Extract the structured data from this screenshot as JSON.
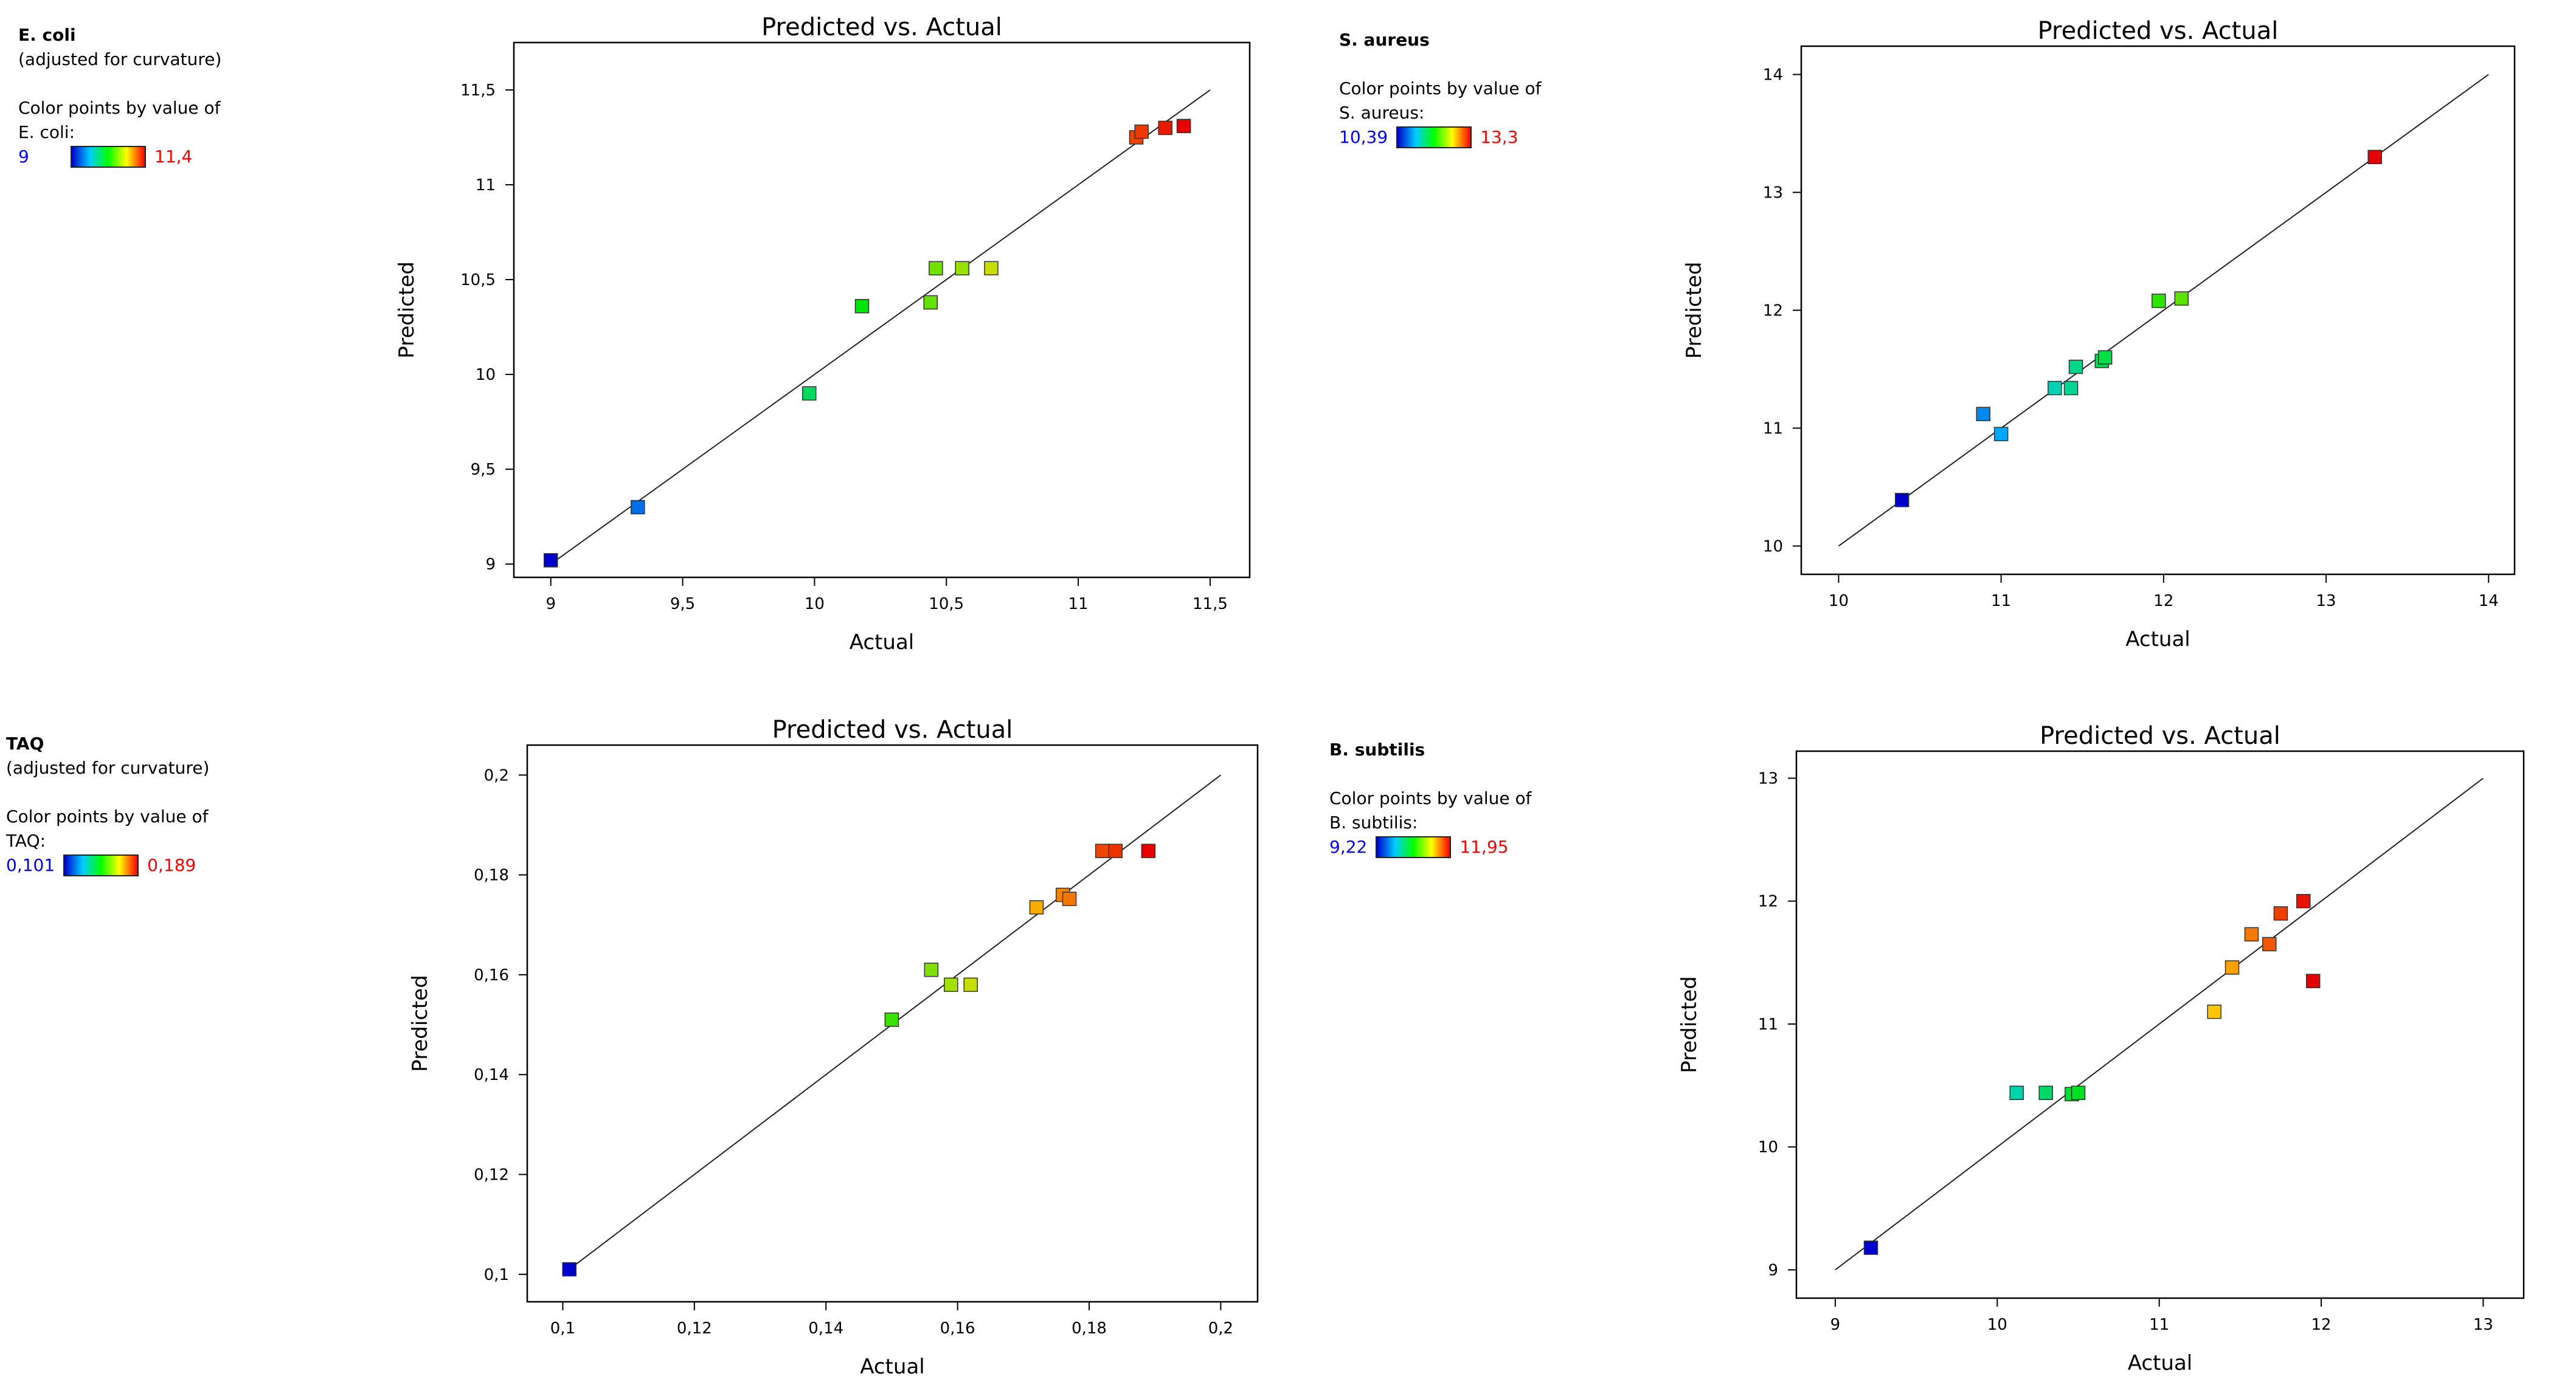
{
  "charts": [
    {
      "id": "ecoli",
      "legend": {
        "name": "E. coli",
        "note": "(adjusted for curvature)",
        "color_by": "Color points by value of",
        "color_by_var": "E. coli:",
        "min_label": "9",
        "max_label": "11,4"
      },
      "color_range": [
        9,
        11.4
      ],
      "chart_data": {
        "type": "scatter",
        "title": "Predicted vs. Actual",
        "xlabel": "Actual",
        "ylabel": "Predicted",
        "xlim": [
          8.86,
          11.65
        ],
        "ylim": [
          8.93,
          11.75
        ],
        "x_ticks": [
          9,
          9.5,
          10,
          10.5,
          11,
          11.5
        ],
        "x_tick_labels": [
          "9",
          "9,5",
          "10",
          "10,5",
          "11",
          "11,5"
        ],
        "y_ticks": [
          9,
          9.5,
          10,
          10.5,
          11,
          11.5
        ],
        "y_tick_labels": [
          "9",
          "9,5",
          "10",
          "10,5",
          "11",
          "11,5"
        ],
        "diagonal": [
          9,
          11.5
        ],
        "points": [
          {
            "x": 9.0,
            "y": 9.02
          },
          {
            "x": 9.33,
            "y": 9.3
          },
          {
            "x": 9.98,
            "y": 9.9
          },
          {
            "x": 10.18,
            "y": 10.36
          },
          {
            "x": 10.44,
            "y": 10.38
          },
          {
            "x": 10.46,
            "y": 10.56
          },
          {
            "x": 10.56,
            "y": 10.56
          },
          {
            "x": 10.67,
            "y": 10.56
          },
          {
            "x": 11.22,
            "y": 11.25
          },
          {
            "x": 11.24,
            "y": 11.28
          },
          {
            "x": 11.33,
            "y": 11.3
          },
          {
            "x": 11.4,
            "y": 11.31
          }
        ]
      }
    },
    {
      "id": "saureus",
      "legend": {
        "name": "S. aureus",
        "note": "",
        "color_by": "Color points by value of",
        "color_by_var": "S. aureus:",
        "min_label": "10,39",
        "max_label": "13,3"
      },
      "color_range": [
        10.39,
        13.3
      ],
      "chart_data": {
        "type": "scatter",
        "title": "Predicted vs. Actual",
        "xlabel": "Actual",
        "ylabel": "Predicted",
        "xlim": [
          9.77,
          14.16
        ],
        "ylim": [
          9.76,
          14.24
        ],
        "x_ticks": [
          10,
          11,
          12,
          13,
          14
        ],
        "x_tick_labels": [
          "10",
          "11",
          "12",
          "13",
          "14"
        ],
        "y_ticks": [
          10,
          11,
          12,
          13,
          14
        ],
        "y_tick_labels": [
          "10",
          "11",
          "12",
          "13",
          "14"
        ],
        "diagonal": [
          10,
          14
        ],
        "points": [
          {
            "x": 10.39,
            "y": 10.39
          },
          {
            "x": 10.89,
            "y": 11.12
          },
          {
            "x": 11.0,
            "y": 10.95
          },
          {
            "x": 11.33,
            "y": 11.34
          },
          {
            "x": 11.43,
            "y": 11.34
          },
          {
            "x": 11.46,
            "y": 11.52
          },
          {
            "x": 11.62,
            "y": 11.57
          },
          {
            "x": 11.64,
            "y": 11.6
          },
          {
            "x": 11.97,
            "y": 12.08
          },
          {
            "x": 12.11,
            "y": 12.1
          },
          {
            "x": 13.3,
            "y": 13.3
          }
        ]
      }
    },
    {
      "id": "taq",
      "legend": {
        "name": "TAQ",
        "note": "(adjusted for curvature)",
        "color_by": "Color points by value of",
        "color_by_var": "TAQ:",
        "min_label": "0,101",
        "max_label": "0,189"
      },
      "color_range": [
        0.101,
        0.189
      ],
      "chart_data": {
        "type": "scatter",
        "title": "Predicted vs. Actual",
        "xlabel": "Actual",
        "ylabel": "Predicted",
        "xlim": [
          0.0946,
          0.2056
        ],
        "ylim": [
          0.0945,
          0.206
        ],
        "x_ticks": [
          0.1,
          0.12,
          0.14,
          0.16,
          0.18,
          0.2
        ],
        "x_tick_labels": [
          "0,1",
          "0,12",
          "0,14",
          "0,16",
          "0,18",
          "0,2"
        ],
        "y_ticks": [
          0.1,
          0.12,
          0.14,
          0.16,
          0.18,
          0.2
        ],
        "y_tick_labels": [
          "0,1",
          "0,12",
          "0,14",
          "0,16",
          "0,18",
          "0,2"
        ],
        "diagonal": [
          0.1,
          0.2
        ],
        "points": [
          {
            "x": 0.101,
            "y": 0.101
          },
          {
            "x": 0.15,
            "y": 0.151
          },
          {
            "x": 0.156,
            "y": 0.161
          },
          {
            "x": 0.159,
            "y": 0.158
          },
          {
            "x": 0.162,
            "y": 0.158
          },
          {
            "x": 0.172,
            "y": 0.1735
          },
          {
            "x": 0.176,
            "y": 0.176
          },
          {
            "x": 0.177,
            "y": 0.1752
          },
          {
            "x": 0.182,
            "y": 0.1848
          },
          {
            "x": 0.184,
            "y": 0.1848
          },
          {
            "x": 0.189,
            "y": 0.1848
          }
        ]
      }
    },
    {
      "id": "bsubtilis",
      "legend": {
        "name": "B. subtilis",
        "note": "",
        "color_by": "Color points by value of",
        "color_by_var": "B. subtilis:",
        "min_label": "9,22",
        "max_label": "11,95"
      },
      "color_range": [
        9.22,
        11.95
      ],
      "chart_data": {
        "type": "scatter",
        "title": "Predicted vs. Actual",
        "xlabel": "Actual",
        "ylabel": "Predicted",
        "xlim": [
          8.76,
          13.25
        ],
        "ylim": [
          8.77,
          13.22
        ],
        "x_ticks": [
          9,
          10,
          11,
          12,
          13
        ],
        "x_tick_labels": [
          "9",
          "10",
          "11",
          "12",
          "13"
        ],
        "y_ticks": [
          9,
          10,
          11,
          12,
          13
        ],
        "y_tick_labels": [
          "9",
          "10",
          "11",
          "12",
          "13"
        ],
        "diagonal": [
          9,
          13
        ],
        "points": [
          {
            "x": 9.22,
            "y": 9.18
          },
          {
            "x": 10.12,
            "y": 10.44
          },
          {
            "x": 10.3,
            "y": 10.44
          },
          {
            "x": 10.46,
            "y": 10.43
          },
          {
            "x": 10.5,
            "y": 10.44
          },
          {
            "x": 11.34,
            "y": 11.1
          },
          {
            "x": 11.45,
            "y": 11.46
          },
          {
            "x": 11.57,
            "y": 11.73
          },
          {
            "x": 11.68,
            "y": 11.65
          },
          {
            "x": 11.75,
            "y": 11.9
          },
          {
            "x": 11.89,
            "y": 12.0
          },
          {
            "x": 11.95,
            "y": 11.35
          }
        ]
      }
    }
  ]
}
